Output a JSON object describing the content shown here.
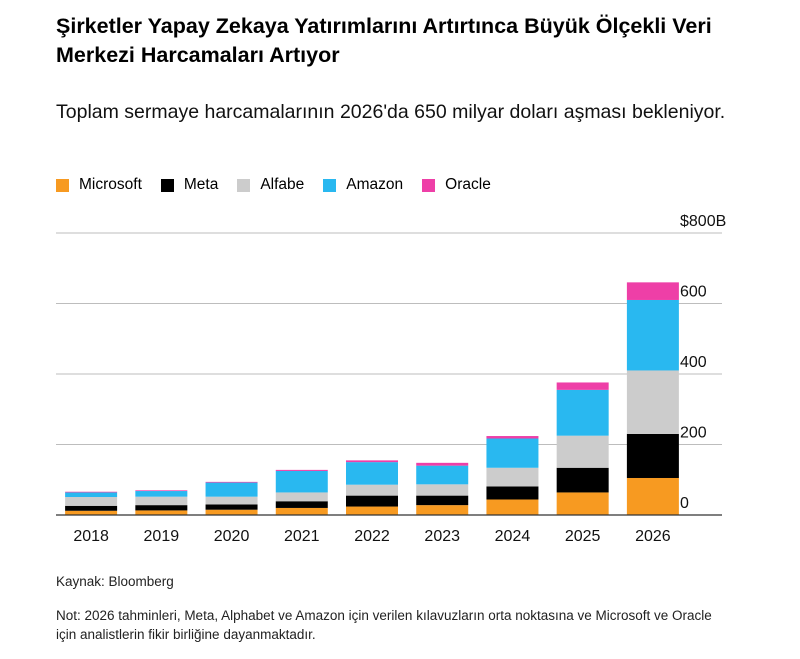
{
  "title": "Şirketler Yapay Zekaya Yatırımlarını Artırtınca Büyük Ölçekli Veri Merkezi Harcamaları Artıyor",
  "subtitle": "Toplam sermaye harcamalarının 2026'da 650 milyar doları aşması bekleniyor.",
  "legend": [
    {
      "label": "Microsoft",
      "color": "#F79A21"
    },
    {
      "label": "Meta",
      "color": "#000000"
    },
    {
      "label": "Alfabe",
      "color": "#CCCCCC"
    },
    {
      "label": "Amazon",
      "color": "#29B8F0"
    },
    {
      "label": "Oracle",
      "color": "#EE3FA7"
    }
  ],
  "source": "Kaynak: Bloomberg",
  "note": "Not: 2026 tahminleri, Meta, Alphabet ve Amazon için verilen kılavuzların orta noktasına ve Microsoft ve Oracle için analistlerin fikir birliğine dayanmaktadır.",
  "chart_data": {
    "type": "bar",
    "stacked": true,
    "categories": [
      "2018",
      "2019",
      "2020",
      "2021",
      "2022",
      "2023",
      "2024",
      "2025",
      "2026"
    ],
    "series": [
      {
        "name": "Microsoft",
        "color": "#F79A21",
        "values": [
          12,
          13,
          15,
          20,
          24,
          28,
          44,
          64,
          105
        ]
      },
      {
        "name": "Meta",
        "color": "#000000",
        "values": [
          14,
          15,
          15,
          19,
          31,
          27,
          37,
          70,
          125
        ]
      },
      {
        "name": "Alfabe",
        "color": "#CCCCCC",
        "values": [
          25,
          24,
          22,
          25,
          31,
          32,
          53,
          91,
          180
        ]
      },
      {
        "name": "Amazon",
        "color": "#29B8F0",
        "values": [
          13,
          16,
          40,
          61,
          64,
          53,
          83,
          130,
          200
        ]
      },
      {
        "name": "Oracle",
        "color": "#EE3FA7",
        "values": [
          2,
          2,
          2,
          3,
          5,
          8,
          7,
          21,
          50
        ]
      }
    ],
    "y_ticks": [
      "0",
      "200",
      "400",
      "600",
      "$800B"
    ],
    "ylim": [
      0,
      800
    ],
    "grid": true,
    "axis_side": "right",
    "legend_position": "top-left"
  }
}
